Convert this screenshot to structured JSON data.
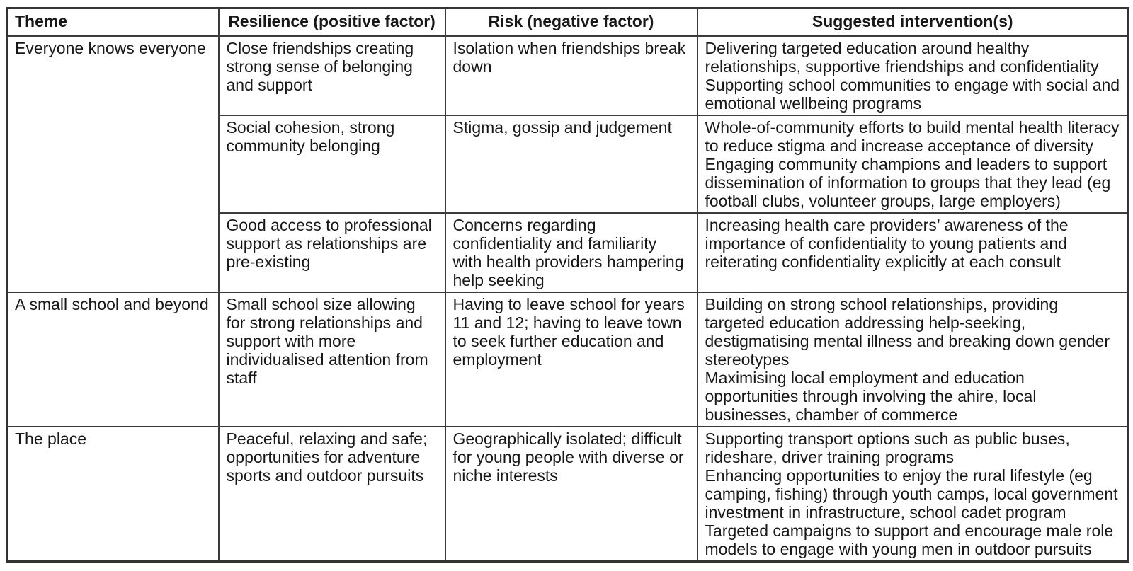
{
  "table": {
    "headers": {
      "theme": "Theme",
      "resilience": "Resilience (positive factor)",
      "risk": "Risk (negative factor)",
      "interventions": "Suggested intervention(s)"
    },
    "groups": [
      {
        "theme": "Everyone knows everyone",
        "rows": [
          {
            "resilience": "Close friendships creating strong sense of belonging and support",
            "risk": "Isolation when friendships break down",
            "interventions": [
              "Delivering targeted education around healthy relationships, supportive friendships and confidentiality",
              "Supporting school communities to engage with social and emotional wellbeing programs"
            ]
          },
          {
            "resilience": "Social cohesion, strong community belonging",
            "risk": "Stigma, gossip and judgement",
            "interventions": [
              "Whole-of-community efforts to build mental health literacy to reduce stigma and increase acceptance of diversity",
              "Engaging community champions and leaders to support dissemination of information to groups that they lead (eg football clubs, volunteer groups, large employers)"
            ]
          },
          {
            "resilience": "Good access to professional support as relationships are pre-existing",
            "risk": "Concerns regarding confidentiality and familiarity with health providers hampering help seeking",
            "interventions": [
              "Increasing health care providers’ awareness of the importance of confidentiality to young patients and reiterating confidentiality explicitly at each consult"
            ]
          }
        ]
      },
      {
        "theme": "A small school and beyond",
        "rows": [
          {
            "resilience": "Small school size allowing for strong relationships and support with more individualised attention from staff",
            "risk": "Having to leave school for years 11 and 12; having to leave town to seek further education and employment",
            "interventions": [
              "Building on strong school relationships, providing targeted education addressing help-seeking, destigmatising mental illness and breaking down gender stereotypes",
              "Maximising local employment and education opportunities through involving the ahire, local businesses, chamber of commerce"
            ]
          }
        ]
      },
      {
        "theme": "The place",
        "rows": [
          {
            "resilience": "Peaceful, relaxing and safe; opportunities for adventure sports and outdoor pursuits",
            "risk": "Geographically isolated; difficult for young people with diverse or niche interests",
            "interventions": [
              "Supporting transport options such as public buses, rideshare, driver training programs",
              "Enhancing opportunities to enjoy the rural lifestyle (eg camping, fishing) through youth camps, local government investment in infrastructure, school cadet program",
              "Targeted campaigns to support and encourage male role models to engage with young men in outdoor pursuits"
            ]
          }
        ]
      }
    ]
  }
}
